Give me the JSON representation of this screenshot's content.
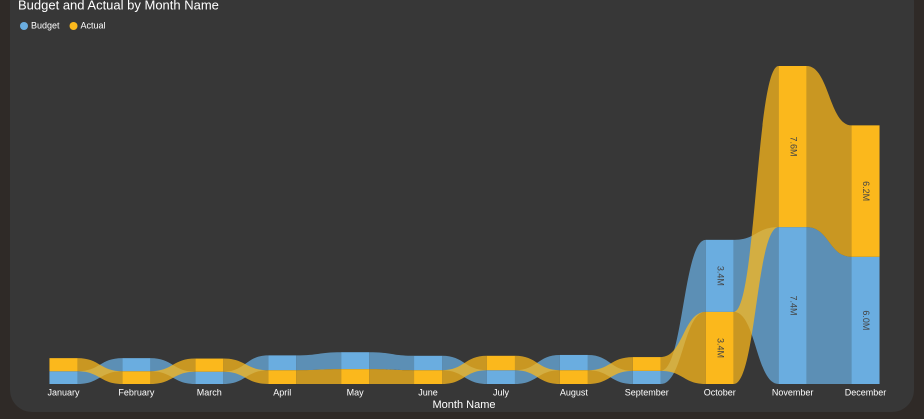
{
  "chart_data": {
    "type": "ribbon",
    "title": "Budget and Actual by Month Name",
    "x_label": "Month Name",
    "categories": [
      "January",
      "February",
      "March",
      "April",
      "May",
      "June",
      "July",
      "August",
      "September",
      "October",
      "November",
      "December"
    ],
    "series": [
      {
        "name": "Budget",
        "color": "#6aade0",
        "values": [
          0.6,
          0.62,
          0.58,
          0.7,
          0.8,
          0.68,
          0.65,
          0.72,
          0.62,
          3.4,
          7.4,
          6.0
        ],
        "value_labels": [
          null,
          null,
          null,
          null,
          null,
          null,
          null,
          null,
          null,
          "3.4M",
          "7.4M",
          "6.0M"
        ]
      },
      {
        "name": "Actual",
        "color": "#fbb81c",
        "values": [
          0.62,
          0.6,
          0.62,
          0.65,
          0.7,
          0.65,
          0.68,
          0.65,
          0.65,
          3.4,
          7.6,
          6.2
        ],
        "value_labels": [
          null,
          null,
          null,
          null,
          null,
          null,
          null,
          null,
          null,
          "3.4M",
          "7.6M",
          "6.2M"
        ]
      }
    ]
  }
}
